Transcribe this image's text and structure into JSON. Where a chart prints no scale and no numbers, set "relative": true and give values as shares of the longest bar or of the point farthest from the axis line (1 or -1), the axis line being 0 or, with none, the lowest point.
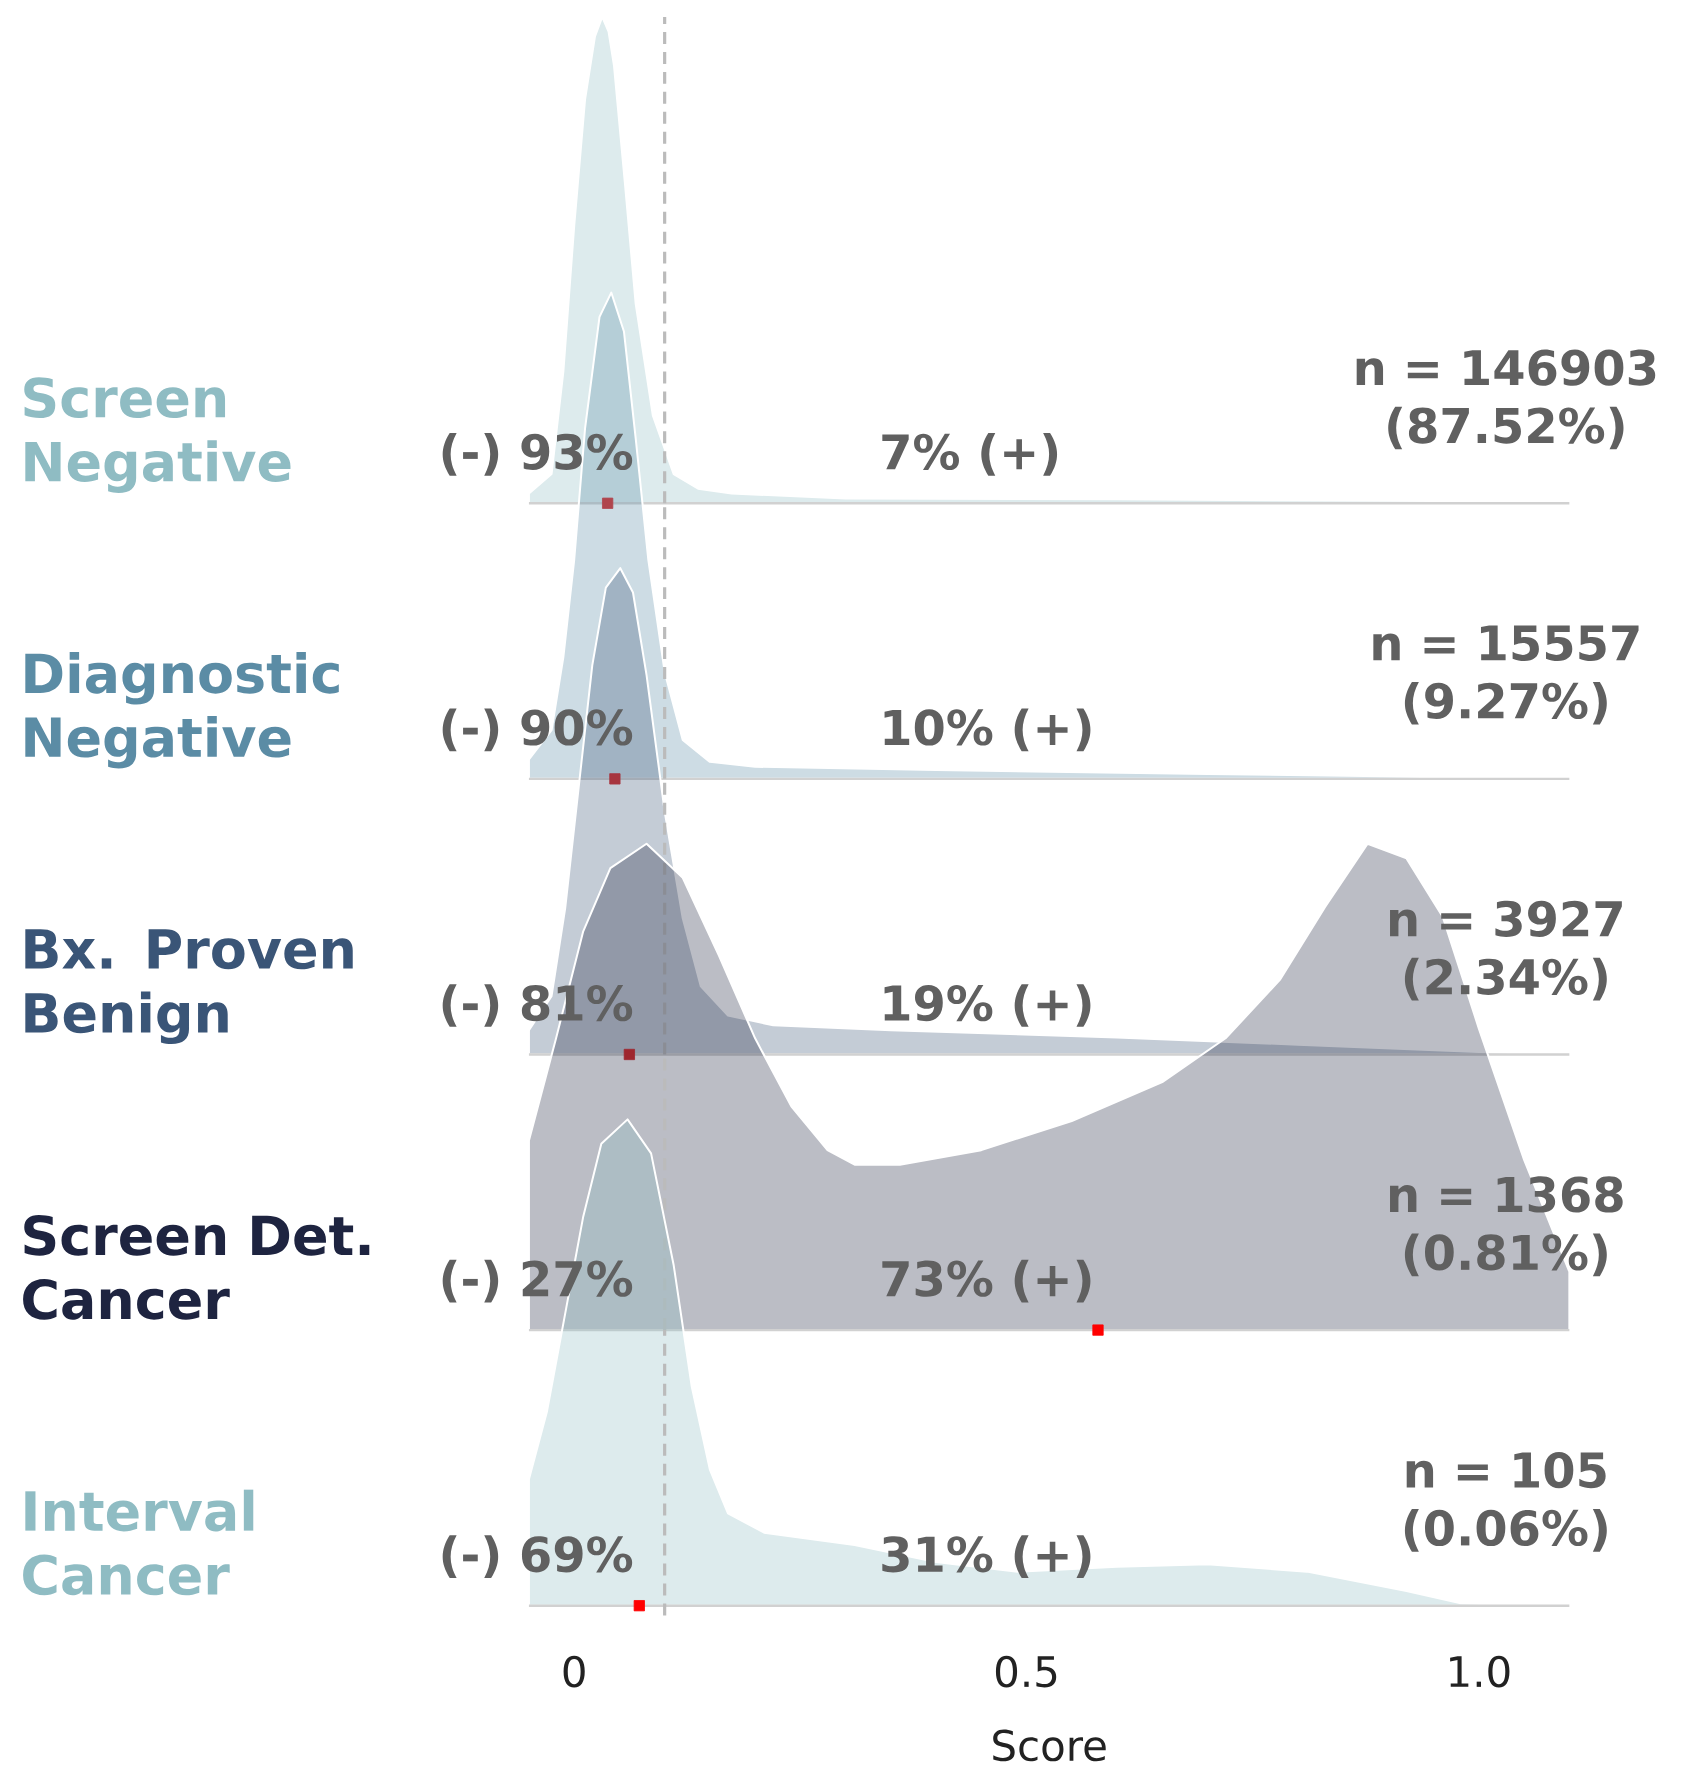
{
  "chart_data": [
    {
      "type": "area",
      "title": "Screen Negative",
      "relative": true,
      "xlim": [
        -0.05,
        1.1
      ],
      "tick_labels": false,
      "x": [
        -0.05,
        -0.025,
        -0.012,
        0,
        0.012,
        0.023,
        0.031,
        0.038,
        0.044,
        0.056,
        0.068,
        0.087,
        0.11,
        0.137,
        0.174,
        0.3,
        0.6,
        0.9,
        1.1
      ],
      "series": [
        {
          "color": "#8fbcc3",
          "values": [
            0.02,
            0.06,
            0.27,
            0.57,
            0.83,
            0.96,
            1.0,
            0.97,
            0.9,
            0.66,
            0.41,
            0.18,
            0.06,
            0.03,
            0.02,
            0.01,
            0.008,
            0.005,
            0.003
          ]
        },
        {
          "type": "scatter",
          "marker": "square",
          "color": "#d62728",
          "x": [
            0.037
          ],
          "values": [
            0
          ]
        }
      ],
      "annotations": [
        "(-) 93%",
        "7% (+)",
        "n = 146903 (87.52%)"
      ],
      "ref_lines": [
        {
          "axis": "x",
          "value": 0.1,
          "color": "#bbbbbb",
          "line_style": "dashed"
        }
      ]
    },
    {
      "type": "area",
      "title": "Diagnostic Negative",
      "relative": true,
      "xlim": [
        -0.05,
        1.1
      ],
      "tick_labels": false,
      "x": [
        -0.05,
        -0.025,
        -0.012,
        0,
        0.012,
        0.028,
        0.041,
        0.055,
        0.068,
        0.082,
        0.1,
        0.12,
        0.15,
        0.2,
        0.4,
        0.7,
        1.0,
        1.1
      ],
      "series": [
        {
          "color": "#5b8ca5",
          "values": [
            0.04,
            0.1,
            0.25,
            0.45,
            0.72,
            0.95,
            1.0,
            0.92,
            0.7,
            0.45,
            0.22,
            0.08,
            0.035,
            0.025,
            0.018,
            0.01,
            0.003,
            0.001
          ]
        },
        {
          "type": "scatter",
          "marker": "square",
          "color": "#d62728",
          "x": [
            0.045
          ],
          "values": [
            0
          ]
        }
      ],
      "annotations": [
        "(-) 90%",
        "10% (+)",
        "n = 15557 (9.27%)"
      ],
      "ref_lines": [
        {
          "axis": "x",
          "value": 0.1,
          "color": "#bbbbbb",
          "line_style": "dashed"
        }
      ]
    },
    {
      "type": "area",
      "title": "Bx. Proven Benign",
      "relative": true,
      "xlim": [
        -0.05,
        1.1
      ],
      "tick_labels": false,
      "x": [
        -0.05,
        -0.025,
        -0.01,
        0.005,
        0.02,
        0.035,
        0.051,
        0.065,
        0.08,
        0.1,
        0.12,
        0.14,
        0.17,
        0.22,
        0.35,
        0.6,
        0.8,
        1.0,
        1.1
      ],
      "series": [
        {
          "color": "#3a5577",
          "values": [
            0.05,
            0.12,
            0.3,
            0.55,
            0.8,
            0.96,
            1.0,
            0.95,
            0.78,
            0.5,
            0.28,
            0.14,
            0.08,
            0.06,
            0.05,
            0.035,
            0.02,
            0.005,
            0.002
          ]
        },
        {
          "type": "scatter",
          "marker": "square",
          "color": "#d62728",
          "x": [
            0.061
          ],
          "values": [
            0
          ]
        }
      ],
      "annotations": [
        "(-) 81%",
        "19% (+)",
        "n = 3927 (2.34%)"
      ],
      "ref_lines": [
        {
          "axis": "x",
          "value": 0.1,
          "color": "#bbbbbb",
          "line_style": "dashed"
        }
      ]
    },
    {
      "type": "area",
      "title": "Screen Det. Cancer",
      "relative": true,
      "xlim": [
        -0.05,
        1.1
      ],
      "tick_labels": false,
      "x": [
        -0.05,
        -0.02,
        0.01,
        0.04,
        0.08,
        0.12,
        0.16,
        0.2,
        0.24,
        0.28,
        0.31,
        0.36,
        0.45,
        0.55,
        0.65,
        0.72,
        0.78,
        0.83,
        0.877,
        0.92,
        0.96,
        1.0,
        1.05,
        1.1
      ],
      "series": [
        {
          "color": "#1e2440",
          "values": [
            0.39,
            0.6,
            0.82,
            0.95,
            1.0,
            0.93,
            0.77,
            0.6,
            0.46,
            0.37,
            0.34,
            0.34,
            0.37,
            0.43,
            0.51,
            0.6,
            0.72,
            0.87,
            1.0,
            0.97,
            0.85,
            0.62,
            0.35,
            0.12
          ]
        },
        {
          "type": "scatter",
          "marker": "square",
          "color": "#ff0000",
          "x": [
            0.579
          ],
          "values": [
            0
          ]
        }
      ],
      "annotations": [
        "(-) 27%",
        "73% (+)",
        "n = 1368 (0.81%)"
      ],
      "ref_lines": [
        {
          "axis": "x",
          "value": 0.1,
          "color": "#bbbbbb",
          "line_style": "dashed"
        }
      ]
    },
    {
      "type": "area",
      "title": "Interval Cancer",
      "relative": true,
      "xlim": [
        -0.05,
        1.1
      ],
      "xlabel": "Score",
      "xticks": [
        0,
        0.5,
        {
          "value": 1,
          "label": "1.0"
        }
      ],
      "x": [
        -0.05,
        -0.03,
        -0.01,
        0.01,
        0.03,
        0.059,
        0.085,
        0.11,
        0.13,
        0.15,
        0.17,
        0.21,
        0.31,
        0.4,
        0.49,
        0.6,
        0.7,
        0.81,
        0.92,
        0.98,
        1.1
      ],
      "series": [
        {
          "color": "#8fbcc3",
          "values": [
            0.26,
            0.4,
            0.6,
            0.8,
            0.95,
            1.0,
            0.93,
            0.7,
            0.45,
            0.28,
            0.19,
            0.15,
            0.125,
            0.09,
            0.07,
            0.08,
            0.085,
            0.07,
            0.03,
            0.005,
            0.0
          ]
        },
        {
          "type": "scatter",
          "marker": "square",
          "color": "#ff0000",
          "x": [
            0.072
          ],
          "values": [
            0
          ]
        }
      ],
      "annotations": [
        "(-) 69%",
        "31% (+)",
        "n = 105 (0.06%)"
      ],
      "ref_lines": [
        {
          "axis": "x",
          "value": 0.1,
          "color": "#bbbbbb",
          "line_style": "dashed"
        }
      ]
    }
  ]
}
